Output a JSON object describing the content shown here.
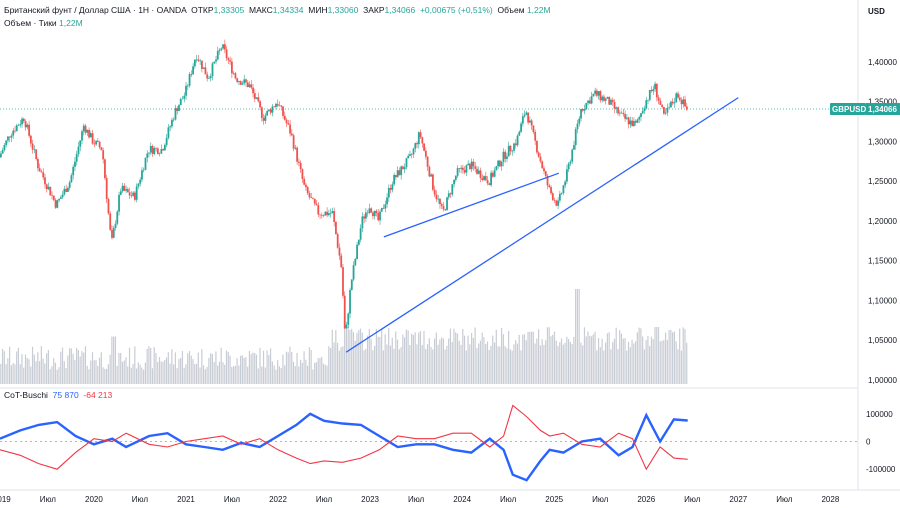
{
  "header": {
    "symbol_line": "Британский фунт / Доллар США · 1Н · OANDA",
    "open_label": "ОТКР",
    "open_value": "1,33305",
    "high_label": "МАКС",
    "high_value": "1,34334",
    "low_label": "МИН",
    "low_value": "1,33060",
    "close_label": "ЗАКР",
    "close_value": "1,34066",
    "change": "+0,00675 (+0,51%)",
    "volume_label": "Объем",
    "volume_value": "1,22M",
    "volume_ticks_line": "Объем · Тики",
    "volume_ticks_value": "1,22M"
  },
  "currency": "USD",
  "price_tag": {
    "symbol": "GBPUSD",
    "value": "1,34066",
    "color": "#26a69a"
  },
  "indicator": {
    "name": "CoT-Buschi",
    "value_blue": "75 870",
    "value_red": "-64 213",
    "color_blue": "#2962ff",
    "color_red": "#f23645"
  },
  "colors": {
    "up": "#26a69a",
    "down": "#ef5350",
    "trend": "#2962ff",
    "volume": "#c8ccd4"
  },
  "chart_data": [
    {
      "type": "candlestick",
      "title": "Британский фунт / Доллар США · 1Н · OANDA",
      "y_axis_labels": [
        "1,40000",
        "1,35000",
        "1,30000",
        "1,25000",
        "1,20000",
        "1,15000",
        "1,10000",
        "1,05000",
        "1,00000"
      ],
      "y_ticks": [
        1.4,
        1.35,
        1.3,
        1.25,
        1.2,
        1.15,
        1.1,
        1.05,
        1.0
      ],
      "ylim": [
        0.995,
        1.44
      ],
      "x_labels": [
        "2019",
        "Июл",
        "2020",
        "Июл",
        "2021",
        "Июл",
        "2022",
        "Июл",
        "2023",
        "Июл",
        "2024",
        "Июл",
        "2025",
        "Июл",
        "2026",
        "Июл",
        "2027",
        "Июл",
        "2028"
      ],
      "x_label_time": [
        2019.0,
        2019.5,
        2020.0,
        2020.5,
        2021.0,
        2021.5,
        2022.0,
        2022.5,
        2023.0,
        2023.5,
        2024.0,
        2024.5,
        2025.0,
        2025.5,
        2026.0,
        2026.5,
        2027.0,
        2027.5,
        2028.0
      ],
      "xlim": [
        2018.98,
        2028.3
      ],
      "price_path": [
        [
          2018.98,
          1.28
        ],
        [
          2019.1,
          1.31
        ],
        [
          2019.25,
          1.33
        ],
        [
          2019.4,
          1.27
        ],
        [
          2019.6,
          1.22
        ],
        [
          2019.75,
          1.25
        ],
        [
          2019.9,
          1.32
        ],
        [
          2020.0,
          1.3
        ],
        [
          2020.1,
          1.29
        ],
        [
          2020.2,
          1.17
        ],
        [
          2020.3,
          1.24
        ],
        [
          2020.45,
          1.23
        ],
        [
          2020.6,
          1.29
        ],
        [
          2020.75,
          1.29
        ],
        [
          2020.9,
          1.34
        ],
        [
          2021.0,
          1.36
        ],
        [
          2021.12,
          1.41
        ],
        [
          2021.25,
          1.38
        ],
        [
          2021.4,
          1.42
        ],
        [
          2021.55,
          1.38
        ],
        [
          2021.7,
          1.37
        ],
        [
          2021.85,
          1.33
        ],
        [
          2022.0,
          1.35
        ],
        [
          2022.15,
          1.31
        ],
        [
          2022.3,
          1.24
        ],
        [
          2022.45,
          1.21
        ],
        [
          2022.6,
          1.21
        ],
        [
          2022.7,
          1.14
        ],
        [
          2022.74,
          1.05
        ],
        [
          2022.8,
          1.12
        ],
        [
          2022.92,
          1.2
        ],
        [
          2023.0,
          1.22
        ],
        [
          2023.1,
          1.2
        ],
        [
          2023.25,
          1.25
        ],
        [
          2023.45,
          1.28
        ],
        [
          2023.55,
          1.31
        ],
        [
          2023.7,
          1.24
        ],
        [
          2023.8,
          1.21
        ],
        [
          2023.95,
          1.26
        ],
        [
          2024.1,
          1.27
        ],
        [
          2024.3,
          1.25
        ],
        [
          2024.45,
          1.28
        ],
        [
          2024.6,
          1.3
        ],
        [
          2024.7,
          1.34
        ],
        [
          2024.8,
          1.3
        ],
        [
          2024.95,
          1.24
        ],
        [
          2025.05,
          1.22
        ],
        [
          2025.15,
          1.26
        ],
        [
          2025.3,
          1.34
        ],
        [
          2025.45,
          1.36
        ],
        [
          2025.6,
          1.35
        ],
        [
          2025.75,
          1.33
        ],
        [
          2025.9,
          1.32
        ],
        [
          2026.0,
          1.35
        ],
        [
          2026.1,
          1.37
        ],
        [
          2026.2,
          1.33
        ],
        [
          2026.35,
          1.36
        ],
        [
          2026.45,
          1.34
        ]
      ],
      "last_close": 1.34066,
      "trendlines": [
        {
          "x": [
            2023.15,
            2025.05
          ],
          "y": [
            1.18,
            1.26
          ]
        },
        {
          "x": [
            2022.74,
            2027.0
          ],
          "y": [
            1.035,
            1.355
          ]
        }
      ],
      "volume_spikes": [
        [
          2020.2,
          0.5
        ],
        [
          2022.74,
          0.6
        ],
        [
          2024.75,
          0.55
        ],
        [
          2025.25,
          1.0
        ],
        [
          2026.1,
          0.6
        ]
      ]
    },
    {
      "type": "line",
      "title": "CoT-Buschi",
      "y_axis_labels": [
        "100000",
        "0",
        "-100000"
      ],
      "y_ticks": [
        100000,
        0,
        -100000
      ],
      "ylim": [
        -150000,
        150000
      ],
      "series": [
        {
          "name": "CoT-Buschi",
          "color": "#2962ff",
          "points": [
            [
              2018.98,
              10000
            ],
            [
              2019.2,
              40000
            ],
            [
              2019.4,
              60000
            ],
            [
              2019.6,
              70000
            ],
            [
              2019.8,
              20000
            ],
            [
              2020.0,
              -10000
            ],
            [
              2020.2,
              10000
            ],
            [
              2020.35,
              -20000
            ],
            [
              2020.6,
              20000
            ],
            [
              2020.8,
              30000
            ],
            [
              2021.0,
              -10000
            ],
            [
              2021.2,
              -20000
            ],
            [
              2021.4,
              -30000
            ],
            [
              2021.6,
              -5000
            ],
            [
              2021.8,
              -20000
            ],
            [
              2022.0,
              20000
            ],
            [
              2022.2,
              60000
            ],
            [
              2022.35,
              100000
            ],
            [
              2022.5,
              75000
            ],
            [
              2022.7,
              65000
            ],
            [
              2022.9,
              60000
            ],
            [
              2023.1,
              20000
            ],
            [
              2023.3,
              -20000
            ],
            [
              2023.5,
              -10000
            ],
            [
              2023.7,
              -10000
            ],
            [
              2023.9,
              -30000
            ],
            [
              2024.1,
              -40000
            ],
            [
              2024.3,
              10000
            ],
            [
              2024.45,
              -30000
            ],
            [
              2024.55,
              -120000
            ],
            [
              2024.7,
              -140000
            ],
            [
              2024.85,
              -70000
            ],
            [
              2024.95,
              -30000
            ],
            [
              2025.1,
              -40000
            ],
            [
              2025.3,
              0
            ],
            [
              2025.5,
              10000
            ],
            [
              2025.7,
              -50000
            ],
            [
              2025.85,
              -20000
            ],
            [
              2026.0,
              95000
            ],
            [
              2026.15,
              0
            ],
            [
              2026.3,
              80000
            ],
            [
              2026.45,
              75870
            ]
          ]
        },
        {
          "name": "",
          "color": "#f23645",
          "points": [
            [
              2018.98,
              -30000
            ],
            [
              2019.2,
              -50000
            ],
            [
              2019.4,
              -80000
            ],
            [
              2019.6,
              -100000
            ],
            [
              2019.8,
              -40000
            ],
            [
              2020.0,
              10000
            ],
            [
              2020.2,
              0
            ],
            [
              2020.35,
              30000
            ],
            [
              2020.6,
              -10000
            ],
            [
              2020.8,
              -20000
            ],
            [
              2021.0,
              0
            ],
            [
              2021.2,
              10000
            ],
            [
              2021.4,
              20000
            ],
            [
              2021.6,
              -10000
            ],
            [
              2021.8,
              10000
            ],
            [
              2022.0,
              -30000
            ],
            [
              2022.2,
              -60000
            ],
            [
              2022.35,
              -80000
            ],
            [
              2022.5,
              -70000
            ],
            [
              2022.7,
              -75000
            ],
            [
              2022.9,
              -60000
            ],
            [
              2023.1,
              -30000
            ],
            [
              2023.3,
              20000
            ],
            [
              2023.5,
              10000
            ],
            [
              2023.7,
              10000
            ],
            [
              2023.9,
              30000
            ],
            [
              2024.1,
              30000
            ],
            [
              2024.3,
              -20000
            ],
            [
              2024.45,
              20000
            ],
            [
              2024.55,
              130000
            ],
            [
              2024.7,
              90000
            ],
            [
              2024.85,
              40000
            ],
            [
              2024.95,
              20000
            ],
            [
              2025.1,
              30000
            ],
            [
              2025.3,
              -10000
            ],
            [
              2025.5,
              -20000
            ],
            [
              2025.7,
              30000
            ],
            [
              2025.85,
              10000
            ],
            [
              2026.0,
              -100000
            ],
            [
              2026.15,
              -20000
            ],
            [
              2026.3,
              -60000
            ],
            [
              2026.45,
              -64213
            ]
          ]
        }
      ]
    }
  ]
}
